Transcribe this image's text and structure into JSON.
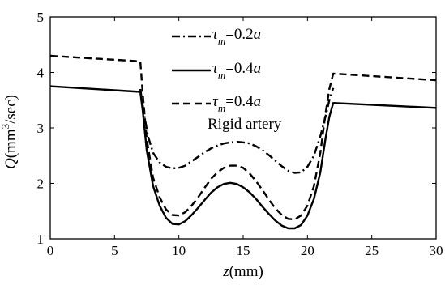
{
  "chart_data": {
    "type": "line",
    "xlabel": {
      "var": "z",
      "unit": "(mm)"
    },
    "ylabel": {
      "var": "Q",
      "unit_pre": "(mm",
      "unit_sup": "3",
      "unit_post": "/sec)"
    },
    "xlim": [
      0,
      30
    ],
    "ylim": [
      1,
      5
    ],
    "xticks": [
      "0",
      "5",
      "10",
      "15",
      "20",
      "25",
      "30"
    ],
    "yticks": [
      "1",
      "2",
      "3",
      "4",
      "5"
    ],
    "grid": false,
    "legend_position": "top-center",
    "legend": [
      {
        "sym": "τ",
        "sub": "m",
        "rest": "=0.2",
        "tail": "a",
        "style": "dashdot"
      },
      {
        "sym": "τ",
        "sub": "m",
        "rest": "=0.4",
        "tail": "a",
        "style": "solid"
      },
      {
        "sym": "τ",
        "sub": "m",
        "rest": "=0.4",
        "tail": "a",
        "style": "dashed",
        "extra": "Rigid artery"
      }
    ],
    "series": [
      {
        "style": "dashdot",
        "x": [
          7.0,
          7.3,
          7.6,
          8.0,
          8.5,
          9.0,
          9.5,
          10.0,
          10.5,
          11.0,
          11.5,
          12.0,
          12.5,
          13.0,
          13.5,
          14.0,
          14.5,
          15.0,
          15.5,
          16.0,
          16.5,
          17.0,
          17.5,
          18.0,
          18.5,
          19.0,
          19.5,
          20.0,
          20.5,
          21.0,
          21.4,
          21.7,
          22.0
        ],
        "y": [
          3.7,
          3.25,
          2.85,
          2.55,
          2.38,
          2.3,
          2.27,
          2.28,
          2.32,
          2.4,
          2.48,
          2.56,
          2.63,
          2.68,
          2.72,
          2.74,
          2.75,
          2.74,
          2.72,
          2.67,
          2.6,
          2.51,
          2.41,
          2.31,
          2.23,
          2.19,
          2.2,
          2.3,
          2.5,
          2.85,
          3.2,
          3.5,
          3.72
        ]
      },
      {
        "style": "solid",
        "x": [
          0,
          7.0,
          7.2,
          7.5,
          8.0,
          8.5,
          9.0,
          9.5,
          10.0,
          10.5,
          11.0,
          11.5,
          12.0,
          12.5,
          13.0,
          13.5,
          14.0,
          14.5,
          15.0,
          15.5,
          16.0,
          16.5,
          17.0,
          17.5,
          18.0,
          18.5,
          19.0,
          19.5,
          20.0,
          20.5,
          21.0,
          21.4,
          21.7,
          22.0,
          30
        ],
        "y": [
          3.75,
          3.65,
          3.3,
          2.6,
          1.95,
          1.6,
          1.38,
          1.27,
          1.26,
          1.32,
          1.43,
          1.56,
          1.7,
          1.83,
          1.93,
          1.99,
          2.01,
          1.99,
          1.93,
          1.84,
          1.72,
          1.58,
          1.45,
          1.33,
          1.24,
          1.19,
          1.19,
          1.25,
          1.42,
          1.72,
          2.2,
          2.8,
          3.2,
          3.45,
          3.36
        ]
      },
      {
        "style": "dashed",
        "x": [
          0,
          7.0,
          7.2,
          7.5,
          8.0,
          8.5,
          9.0,
          9.5,
          10.0,
          10.5,
          11.0,
          11.5,
          12.0,
          12.5,
          13.0,
          13.5,
          14.0,
          14.5,
          15.0,
          15.5,
          16.0,
          16.5,
          17.0,
          17.5,
          18.0,
          18.5,
          19.0,
          19.5,
          20.0,
          20.5,
          21.0,
          21.4,
          21.7,
          22.0,
          30
        ],
        "y": [
          4.3,
          4.2,
          3.6,
          2.8,
          2.1,
          1.75,
          1.53,
          1.43,
          1.42,
          1.48,
          1.6,
          1.75,
          1.92,
          2.08,
          2.2,
          2.28,
          2.32,
          2.32,
          2.28,
          2.18,
          2.04,
          1.88,
          1.71,
          1.55,
          1.43,
          1.36,
          1.35,
          1.42,
          1.6,
          1.95,
          2.55,
          3.25,
          3.7,
          3.98,
          3.86
        ]
      }
    ]
  }
}
